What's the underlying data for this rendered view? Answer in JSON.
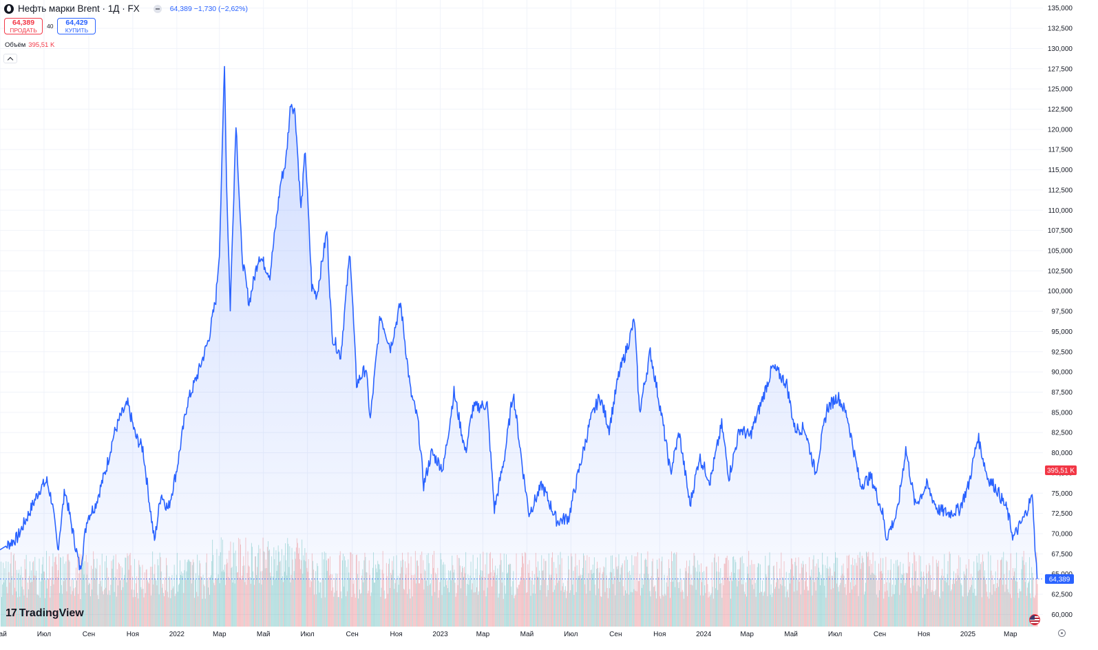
{
  "header": {
    "title": "Нефть марки Brent · 1Д · FX",
    "quote": "64,389  −1,730 (−2,62%)"
  },
  "trade": {
    "sell_price": "64,389",
    "sell_label": "ПРОДАТЬ",
    "spread": "40",
    "buy_price": "64,429",
    "buy_label": "КУПИТЬ"
  },
  "volume": {
    "label": "Объём",
    "value": "395,51 K"
  },
  "brand": {
    "name": "TradingView"
  },
  "colors": {
    "line": "#2962ff",
    "up": "#26a69a",
    "down": "#ef5350",
    "grid": "#f0f3fa",
    "axis_text": "#131722"
  },
  "icons": {
    "symbol": "oil-drop-icon",
    "collapse": "minus-icon",
    "toggle": "chevron-up-icon",
    "flag": "us-flag-icon",
    "settings": "gear-icon"
  },
  "chart_data": {
    "type": "area",
    "title": "Нефть марки Brent · 1Д · FX",
    "ylim": [
      58.5,
      136
    ],
    "y_ticks": [
      "135,000",
      "132,500",
      "130,000",
      "127,500",
      "125,000",
      "122,500",
      "120,000",
      "117,500",
      "115,000",
      "112,500",
      "110,000",
      "107,500",
      "105,000",
      "102,500",
      "100,000",
      "97,500",
      "95,000",
      "92,500",
      "90,000",
      "87,500",
      "85,000",
      "82,500",
      "80,000",
      "77,500",
      "75,000",
      "72,500",
      "70,000",
      "67,500",
      "65,000",
      "62,500",
      "60,000"
    ],
    "x_ticks": [
      "Май",
      "Июл",
      "Сен",
      "Ноя",
      "2022",
      "Мар",
      "Май",
      "Июл",
      "Сен",
      "Ноя",
      "2023",
      "Мар",
      "Май",
      "Июл",
      "Сен",
      "Ноя",
      "2024",
      "Мар",
      "Май",
      "Июл",
      "Сен",
      "Ноя",
      "2025",
      "Мар"
    ],
    "x_range": [
      "2021-05-01",
      "2025-04-15"
    ],
    "grid": true,
    "last_price": "64,389",
    "last_volume": "395,51 K",
    "series": [
      {
        "name": "Нефть марки Brent",
        "points": [
          [
            "2021-05-01",
            68.0
          ],
          [
            "2021-05-10",
            68.5
          ],
          [
            "2021-05-25",
            69.5
          ],
          [
            "2021-06-10",
            72.5
          ],
          [
            "2021-06-25",
            75.5
          ],
          [
            "2021-07-05",
            76.5
          ],
          [
            "2021-07-12",
            74.0
          ],
          [
            "2021-07-20",
            68.0
          ],
          [
            "2021-07-30",
            75.5
          ],
          [
            "2021-08-05",
            72.5
          ],
          [
            "2021-08-20",
            65.5
          ],
          [
            "2021-08-30",
            72.0
          ],
          [
            "2021-09-10",
            73.5
          ],
          [
            "2021-09-25",
            78.0
          ],
          [
            "2021-10-05",
            82.0
          ],
          [
            "2021-10-15",
            84.5
          ],
          [
            "2021-10-25",
            86.0
          ],
          [
            "2021-11-05",
            82.0
          ],
          [
            "2021-11-15",
            80.5
          ],
          [
            "2021-11-26",
            72.5
          ],
          [
            "2021-12-01",
            69.0
          ],
          [
            "2021-12-10",
            75.0
          ],
          [
            "2021-12-20",
            73.0
          ],
          [
            "2022-01-01",
            78.0
          ],
          [
            "2022-01-15",
            86.0
          ],
          [
            "2022-01-31",
            90.0
          ],
          [
            "2022-02-14",
            94.0
          ],
          [
            "2022-02-24",
            99.0
          ],
          [
            "2022-03-01",
            105.0
          ],
          [
            "2022-03-04",
            114.0
          ],
          [
            "2022-03-08",
            128.5
          ],
          [
            "2022-03-11",
            113.0
          ],
          [
            "2022-03-16",
            98.0
          ],
          [
            "2022-03-24",
            121.0
          ],
          [
            "2022-04-01",
            104.5
          ],
          [
            "2022-04-11",
            98.5
          ],
          [
            "2022-04-25",
            104.5
          ],
          [
            "2022-05-10",
            102.0
          ],
          [
            "2022-05-25",
            113.5
          ],
          [
            "2022-06-01",
            116.0
          ],
          [
            "2022-06-08",
            123.5
          ],
          [
            "2022-06-14",
            122.0
          ],
          [
            "2022-06-22",
            110.0
          ],
          [
            "2022-06-28",
            117.5
          ],
          [
            "2022-07-07",
            100.5
          ],
          [
            "2022-07-14",
            99.5
          ],
          [
            "2022-07-28",
            107.5
          ],
          [
            "2022-08-04",
            94.5
          ],
          [
            "2022-08-16",
            92.0
          ],
          [
            "2022-08-29",
            105.0
          ],
          [
            "2022-09-07",
            88.5
          ],
          [
            "2022-09-20",
            90.5
          ],
          [
            "2022-09-26",
            84.0
          ],
          [
            "2022-10-10",
            97.0
          ],
          [
            "2022-10-24",
            93.0
          ],
          [
            "2022-11-07",
            98.5
          ],
          [
            "2022-11-21",
            87.5
          ],
          [
            "2022-12-01",
            84.0
          ],
          [
            "2022-12-09",
            76.0
          ],
          [
            "2022-12-20",
            80.0
          ],
          [
            "2023-01-05",
            78.0
          ],
          [
            "2023-01-20",
            87.5
          ],
          [
            "2023-02-05",
            80.0
          ],
          [
            "2023-02-15",
            85.5
          ],
          [
            "2023-03-07",
            86.0
          ],
          [
            "2023-03-17",
            73.0
          ],
          [
            "2023-03-31",
            79.5
          ],
          [
            "2023-04-12",
            87.5
          ],
          [
            "2023-04-26",
            77.5
          ],
          [
            "2023-05-04",
            72.5
          ],
          [
            "2023-05-22",
            76.0
          ],
          [
            "2023-06-12",
            71.5
          ],
          [
            "2023-06-28",
            72.0
          ],
          [
            "2023-07-10",
            77.0
          ],
          [
            "2023-07-28",
            84.0
          ],
          [
            "2023-08-10",
            87.0
          ],
          [
            "2023-08-23",
            83.0
          ],
          [
            "2023-09-05",
            89.5
          ],
          [
            "2023-09-20",
            94.0
          ],
          [
            "2023-09-27",
            96.5
          ],
          [
            "2023-10-04",
            85.0
          ],
          [
            "2023-10-19",
            92.5
          ],
          [
            "2023-11-03",
            85.0
          ],
          [
            "2023-11-16",
            77.5
          ],
          [
            "2023-11-28",
            82.5
          ],
          [
            "2023-12-13",
            73.5
          ],
          [
            "2023-12-26",
            79.5
          ],
          [
            "2024-01-10",
            76.5
          ],
          [
            "2024-01-26",
            83.5
          ],
          [
            "2024-02-05",
            77.0
          ],
          [
            "2024-02-20",
            83.0
          ],
          [
            "2024-03-05",
            82.0
          ],
          [
            "2024-03-20",
            86.0
          ],
          [
            "2024-04-05",
            90.5
          ],
          [
            "2024-04-12",
            90.0
          ],
          [
            "2024-04-25",
            88.5
          ],
          [
            "2024-05-06",
            83.0
          ],
          [
            "2024-05-20",
            83.0
          ],
          [
            "2024-06-04",
            77.5
          ],
          [
            "2024-06-20",
            85.5
          ],
          [
            "2024-07-05",
            87.0
          ],
          [
            "2024-07-18",
            84.5
          ],
          [
            "2024-08-05",
            76.0
          ],
          [
            "2024-08-20",
            77.0
          ],
          [
            "2024-09-05",
            72.5
          ],
          [
            "2024-09-10",
            69.5
          ],
          [
            "2024-09-25",
            72.5
          ],
          [
            "2024-10-07",
            80.5
          ],
          [
            "2024-10-20",
            73.5
          ],
          [
            "2024-11-05",
            76.0
          ],
          [
            "2024-11-20",
            73.0
          ],
          [
            "2024-12-05",
            72.5
          ],
          [
            "2024-12-20",
            73.0
          ],
          [
            "2025-01-02",
            76.0
          ],
          [
            "2025-01-15",
            82.0
          ],
          [
            "2025-01-28",
            77.0
          ],
          [
            "2025-02-10",
            75.5
          ],
          [
            "2025-02-24",
            73.0
          ],
          [
            "2025-03-05",
            69.5
          ],
          [
            "2025-03-20",
            72.0
          ],
          [
            "2025-03-28",
            74.0
          ],
          [
            "2025-04-01",
            74.5
          ],
          [
            "2025-04-03",
            70.0
          ],
          [
            "2025-04-07",
            64.389
          ]
        ]
      }
    ]
  }
}
